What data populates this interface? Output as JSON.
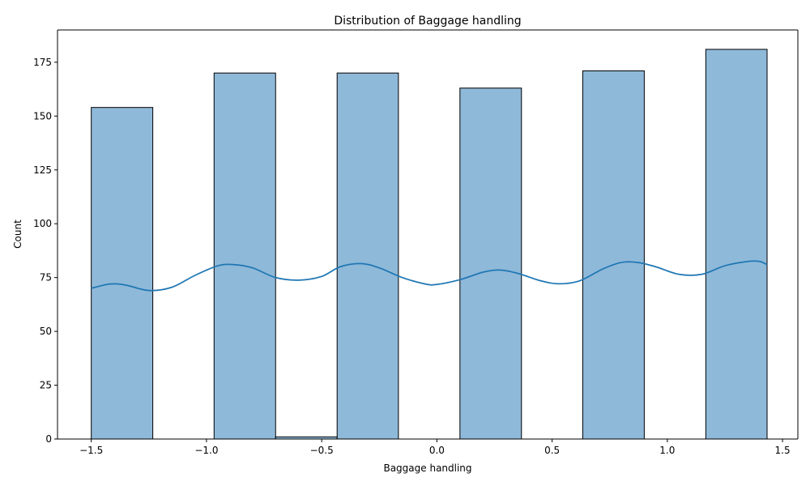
{
  "chart_data": {
    "type": "bar",
    "title": "Distribution of Baggage handling",
    "xlabel": "Baggage handling",
    "ylabel": "Count",
    "xlim": [
      -1.6465,
      1.5665
    ],
    "ylim": [
      0,
      190
    ],
    "x_ticks": [
      -1.5,
      -1.0,
      -0.5,
      0.0,
      0.5,
      1.0,
      1.5
    ],
    "x_tick_labels": [
      "−1.5",
      "−1.0",
      "−0.5",
      "0.0",
      "0.5",
      "1.0",
      "1.5"
    ],
    "y_ticks": [
      0,
      25,
      50,
      75,
      100,
      125,
      150,
      175
    ],
    "y_tick_labels": [
      "0",
      "25",
      "50",
      "75",
      "100",
      "125",
      "150",
      "175"
    ],
    "bins": [
      {
        "x0": -1.5,
        "x1": -1.233,
        "count": 154
      },
      {
        "x0": -1.233,
        "x1": -0.967,
        "count": 0
      },
      {
        "x0": -0.967,
        "x1": -0.7,
        "count": 170
      },
      {
        "x0": -0.7,
        "x1": -0.433,
        "count": 1
      },
      {
        "x0": -0.433,
        "x1": -0.167,
        "count": 170
      },
      {
        "x0": -0.167,
        "x1": 0.1,
        "count": 0
      },
      {
        "x0": 0.1,
        "x1": 0.367,
        "count": 163
      },
      {
        "x0": 0.367,
        "x1": 0.633,
        "count": 0
      },
      {
        "x0": 0.633,
        "x1": 0.9,
        "count": 171
      },
      {
        "x0": 0.9,
        "x1": 1.167,
        "count": 0
      },
      {
        "x0": 1.167,
        "x1": 1.433,
        "count": 181
      }
    ],
    "kde": {
      "x": [
        -1.5,
        -1.42,
        -1.35,
        -1.25,
        -1.15,
        -1.05,
        -0.95,
        -0.88,
        -0.8,
        -0.7,
        -0.6,
        -0.5,
        -0.42,
        -0.33,
        -0.25,
        -0.15,
        -0.05,
        0.0,
        0.1,
        0.2,
        0.27,
        0.35,
        0.45,
        0.53,
        0.62,
        0.72,
        0.8,
        0.87,
        0.95,
        1.05,
        1.15,
        1.25,
        1.35,
        1.4,
        1.433
      ],
      "y": [
        70,
        72,
        71.5,
        69,
        70.5,
        76,
        80.5,
        81,
        79.5,
        75,
        73.8,
        75.5,
        80,
        81.5,
        79.5,
        75,
        72,
        71.8,
        74,
        77.5,
        78.5,
        77,
        73.5,
        72.1,
        73.5,
        79,
        82,
        82,
        80,
        76.5,
        76.5,
        80.5,
        82.5,
        82.5,
        81
      ]
    },
    "colors": {
      "bar_fill": "#8fb9d9",
      "bar_edge": "#000000",
      "kde_line": "#1f77b4"
    },
    "grid": false,
    "legend": "none"
  }
}
